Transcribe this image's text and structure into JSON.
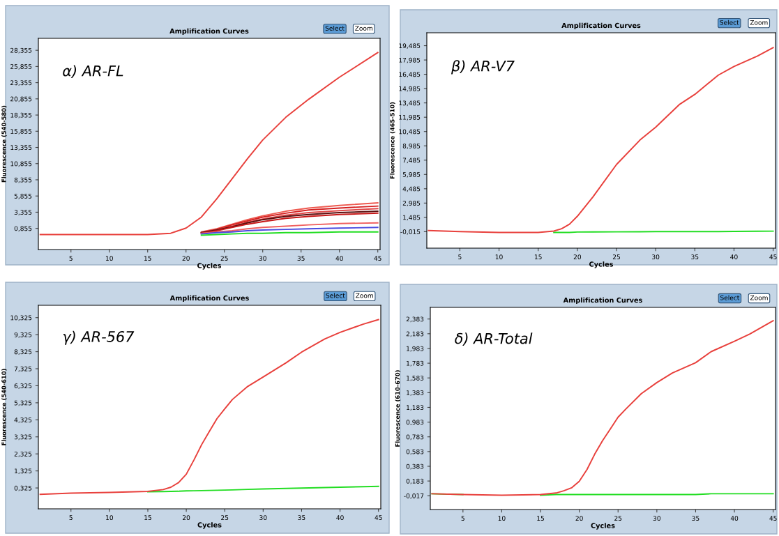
{
  "chart_data": [
    {
      "type": "line",
      "title": "Amplification Curves",
      "xlabel": "Cycles",
      "ylabel": "Fluorescence (540-580)",
      "annotations": [
        "α) AR-FL",
        "Select",
        "Zoom"
      ],
      "x": [
        1,
        5,
        10,
        15,
        18,
        20,
        22,
        24,
        26,
        28,
        30,
        33,
        36,
        40,
        45
      ],
      "xlim": [
        0.75,
        45.3
      ],
      "xticks": [
        5,
        10,
        15,
        20,
        25,
        30,
        35,
        40,
        45
      ],
      "ylim": [
        -2.41,
        30.2
      ],
      "yticks": [
        {
          "value": 0.855,
          "label": "0,855"
        },
        {
          "value": 3.355,
          "label": "3,355"
        },
        {
          "value": 5.855,
          "label": "5,855"
        },
        {
          "value": 8.355,
          "label": "8,355"
        },
        {
          "value": 10.855,
          "label": "10,855"
        },
        {
          "value": 13.355,
          "label": "13,355"
        },
        {
          "value": 15.855,
          "label": "15,855"
        },
        {
          "value": 18.355,
          "label": "18,355"
        },
        {
          "value": 20.855,
          "label": "20,855"
        },
        {
          "value": 23.355,
          "label": "23,355"
        },
        {
          "value": 25.855,
          "label": "25,855"
        },
        {
          "value": 28.355,
          "label": "28,355"
        }
      ],
      "series": [
        {
          "color": "#e8403c",
          "values": [
            -0.1,
            -0.1,
            -0.1,
            -0.1,
            0.1,
            0.9,
            2.6,
            5.4,
            8.5,
            11.6,
            14.5,
            18.0,
            20.8,
            24.2,
            28.0
          ]
        },
        {
          "color": "#ee5a50",
          "values": [
            null,
            null,
            null,
            null,
            null,
            null,
            0.3,
            0.8,
            1.5,
            2.2,
            2.8,
            3.5,
            4.0,
            4.4,
            4.8
          ]
        },
        {
          "color": "#d42020",
          "values": [
            null,
            null,
            null,
            null,
            null,
            null,
            0.2,
            0.7,
            1.4,
            2.0,
            2.6,
            3.2,
            3.7,
            4.0,
            4.3
          ]
        },
        {
          "color": "#e04848",
          "values": [
            null,
            null,
            null,
            null,
            null,
            null,
            0.2,
            0.6,
            1.2,
            1.8,
            2.3,
            2.9,
            3.3,
            3.6,
            3.9
          ]
        },
        {
          "color": "#5a1010",
          "values": [
            null,
            null,
            null,
            null,
            null,
            null,
            0.2,
            0.6,
            1.1,
            1.7,
            2.2,
            2.7,
            3.0,
            3.3,
            3.5
          ]
        },
        {
          "color": "#c81818",
          "values": [
            null,
            null,
            null,
            null,
            null,
            null,
            0.1,
            0.5,
            1.0,
            1.5,
            1.9,
            2.4,
            2.7,
            3.0,
            3.2
          ]
        },
        {
          "color": "#f06060",
          "values": [
            null,
            null,
            null,
            null,
            null,
            null,
            0.1,
            0.3,
            0.5,
            0.8,
            1.0,
            1.2,
            1.4,
            1.6,
            1.7
          ]
        },
        {
          "color": "#4a4ae0",
          "values": [
            null,
            null,
            null,
            null,
            null,
            null,
            0.0,
            0.2,
            0.3,
            0.5,
            0.6,
            0.7,
            0.8,
            0.9,
            1.0
          ]
        },
        {
          "color": "#22dd22",
          "values": [
            null,
            null,
            null,
            null,
            null,
            null,
            -0.2,
            -0.1,
            0.0,
            0.1,
            0.1,
            0.2,
            0.2,
            0.3,
            0.3
          ]
        }
      ]
    },
    {
      "type": "line",
      "title": "Amplification Curves",
      "xlabel": "Cycles",
      "ylabel": "Fluorescence (465-510)",
      "annotations": [
        "β) AR-V7",
        "Select",
        "Zoom"
      ],
      "x": [
        1,
        5,
        10,
        15,
        17,
        18,
        19,
        20,
        22,
        25,
        28,
        30,
        33,
        35,
        38,
        40,
        43,
        45
      ],
      "xlim": [
        0.78,
        45.3
      ],
      "xticks": [
        5,
        10,
        15,
        20,
        25,
        30,
        35,
        40,
        45
      ],
      "ylim": [
        -1.74,
        20.84
      ],
      "yticks": [
        {
          "value": -0.015,
          "label": "-0,015"
        },
        {
          "value": 1.485,
          "label": "1,485"
        },
        {
          "value": 2.985,
          "label": "2,985"
        },
        {
          "value": 4.485,
          "label": "4,485"
        },
        {
          "value": 5.985,
          "label": "5,985"
        },
        {
          "value": 7.485,
          "label": "7,485"
        },
        {
          "value": 8.985,
          "label": "8,985"
        },
        {
          "value": 10.485,
          "label": "10,485"
        },
        {
          "value": 11.985,
          "label": "11,985"
        },
        {
          "value": 13.485,
          "label": "13,485"
        },
        {
          "value": 14.985,
          "label": "14,985"
        },
        {
          "value": 16.485,
          "label": "16,485"
        },
        {
          "value": 17.985,
          "label": "17,985"
        },
        {
          "value": 19.485,
          "label": "19,485"
        }
      ],
      "series": [
        {
          "color": "#22dd22",
          "values": [
            null,
            null,
            null,
            null,
            -0.1,
            -0.1,
            -0.1,
            -0.05,
            -0.04,
            -0.03,
            -0.02,
            -0.01,
            0.0,
            0.0,
            0.0,
            0.02,
            0.03,
            0.04
          ]
        },
        {
          "color": "#e8403c",
          "values": [
            0.1,
            0.0,
            -0.1,
            -0.1,
            0.05,
            0.3,
            0.77,
            1.6,
            3.64,
            7.03,
            9.6,
            10.94,
            13.3,
            14.38,
            16.4,
            17.3,
            18.4,
            19.28
          ]
        }
      ]
    },
    {
      "type": "line",
      "title": "Amplification Curves",
      "xlabel": "Cycles",
      "ylabel": "Fluorescence (540-610)",
      "annotations": [
        "γ) AR-567",
        "Select",
        "Zoom"
      ],
      "x": [
        1,
        5,
        10,
        15,
        17,
        18,
        19,
        20,
        21,
        22,
        23,
        24,
        25,
        26,
        28,
        30,
        33,
        35,
        38,
        40,
        43,
        45
      ],
      "xlim": [
        0.76,
        45.3
      ],
      "xticks": [
        5,
        10,
        15,
        20,
        25,
        30,
        35,
        40,
        45
      ],
      "ylim": [
        -0.9,
        11.05
      ],
      "yticks": [
        {
          "value": 0.325,
          "label": "0,325"
        },
        {
          "value": 1.325,
          "label": "1,325"
        },
        {
          "value": 2.325,
          "label": "2,325"
        },
        {
          "value": 3.325,
          "label": "3,325"
        },
        {
          "value": 4.325,
          "label": "4,325"
        },
        {
          "value": 5.325,
          "label": "5,325"
        },
        {
          "value": 6.325,
          "label": "6,325"
        },
        {
          "value": 7.325,
          "label": "7,325"
        },
        {
          "value": 8.325,
          "label": "8,325"
        },
        {
          "value": 9.325,
          "label": "9,325"
        },
        {
          "value": 10.325,
          "label": "10,325"
        }
      ],
      "series": [
        {
          "color": "#22dd22",
          "values": [
            null,
            null,
            null,
            0.1,
            0.11,
            0.12,
            0.13,
            0.15,
            0.16,
            0.17,
            0.18,
            0.19,
            0.2,
            0.21,
            0.24,
            0.27,
            0.3,
            0.32,
            0.35,
            0.37,
            0.4,
            0.42
          ]
        },
        {
          "color": "#e8403c",
          "values": [
            -0.05,
            0.02,
            0.06,
            0.12,
            0.23,
            0.37,
            0.64,
            1.13,
            1.97,
            2.87,
            3.64,
            4.4,
            4.97,
            5.52,
            6.29,
            6.84,
            7.68,
            8.3,
            9.07,
            9.46,
            9.94,
            10.21
          ]
        }
      ]
    },
    {
      "type": "line",
      "title": "Amplification Curves",
      "xlabel": "Cycles",
      "ylabel": "Fluorescence (610-670)",
      "annotations": [
        "δ) AR-Total",
        "Select",
        "Zoom"
      ],
      "x": [
        1,
        5,
        10,
        15,
        17,
        18,
        19,
        20,
        21,
        22,
        23,
        24,
        25,
        26,
        28,
        30,
        32,
        35,
        37,
        40,
        42,
        45
      ],
      "xlim": [
        0.79,
        45.3
      ],
      "xticks": [
        5,
        10,
        15,
        20,
        25,
        30,
        35,
        40,
        45
      ],
      "ylim": [
        -0.204,
        2.541
      ],
      "yticks": [
        {
          "value": -0.017,
          "label": "-0,017"
        },
        {
          "value": 0.183,
          "label": "0,183"
        },
        {
          "value": 0.383,
          "label": "0,383"
        },
        {
          "value": 0.583,
          "label": "0,583"
        },
        {
          "value": 0.783,
          "label": "0,783"
        },
        {
          "value": 0.983,
          "label": "0,983"
        },
        {
          "value": 1.183,
          "label": "1,183"
        },
        {
          "value": 1.383,
          "label": "1,383"
        },
        {
          "value": 1.583,
          "label": "1,583"
        },
        {
          "value": 1.783,
          "label": "1,783"
        },
        {
          "value": 1.983,
          "label": "1,983"
        },
        {
          "value": 2.183,
          "label": "2,183"
        },
        {
          "value": 2.383,
          "label": "2,383"
        }
      ],
      "series": [
        {
          "color": "#22dd22",
          "values": [
            0.01,
            0.0,
            null,
            -0.01,
            0.0,
            0.0,
            0.0,
            0.0,
            0.0,
            0.0,
            0.0,
            0.0,
            0.0,
            0.0,
            0.0,
            0.0,
            0.0,
            0.0,
            0.01,
            0.01,
            0.01,
            0.01
          ]
        },
        {
          "color": "#e8403c",
          "values": [
            0.01,
            0.0,
            -0.01,
            0.0,
            0.02,
            0.05,
            0.09,
            0.18,
            0.34,
            0.55,
            0.73,
            0.89,
            1.05,
            1.16,
            1.37,
            1.52,
            1.65,
            1.79,
            1.94,
            2.08,
            2.18,
            2.36
          ]
        }
      ]
    }
  ]
}
